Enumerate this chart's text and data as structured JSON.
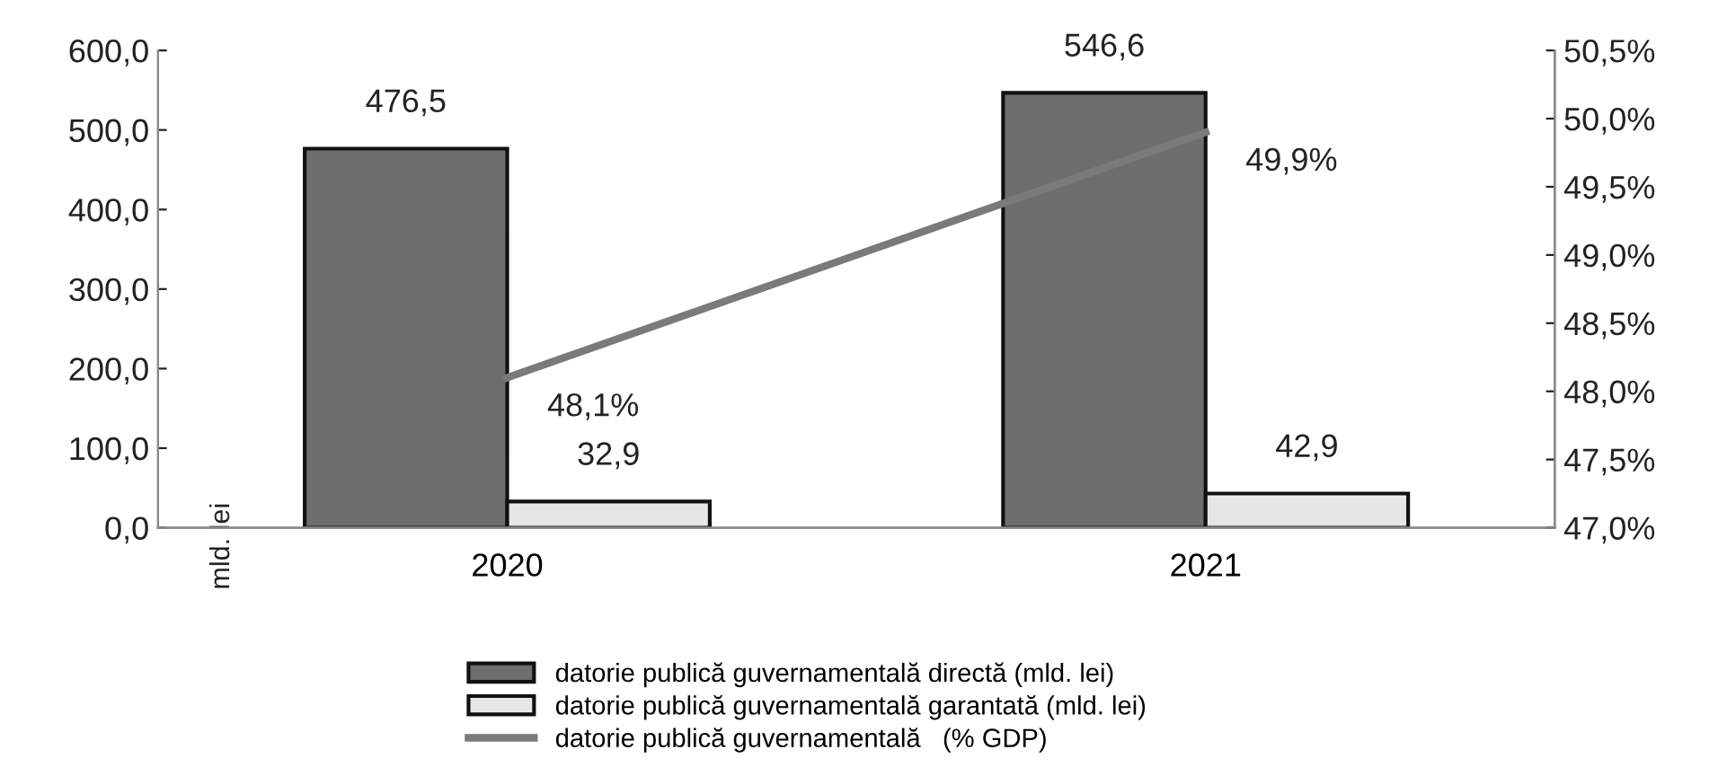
{
  "chart_data": {
    "type": "bar",
    "categories": [
      "2020",
      "2021"
    ],
    "ylabel": "mld. lei",
    "series": [
      {
        "name": "datorie publică guvernamentală directă (mld. lei)",
        "color": "#6e6e6e",
        "values": [
          476.5,
          546.6
        ],
        "value_labels": [
          "476,5",
          "546,6"
        ]
      },
      {
        "name": "datorie publică guvernamentală garantată (mld. lei)",
        "color": "#e6e6e6",
        "values": [
          32.9,
          42.9
        ],
        "value_labels": [
          "32,9",
          "42,9"
        ]
      },
      {
        "name": "datorie publică guvernamentală   (% GDP)",
        "type": "line",
        "axis": "y2",
        "color": "#7a7a7a",
        "values": [
          48.1,
          49.9
        ],
        "value_labels": [
          "48,1%",
          "49,9%"
        ]
      }
    ],
    "ylim": [
      0,
      600
    ],
    "yticks": [
      {
        "value": 0,
        "label": "0,0"
      },
      {
        "value": 100,
        "label": "100,0"
      },
      {
        "value": 200,
        "label": "200,0"
      },
      {
        "value": 300,
        "label": "300,0"
      },
      {
        "value": 400,
        "label": "400,0"
      },
      {
        "value": 500,
        "label": "500,0"
      },
      {
        "value": 600,
        "label": "600,0"
      }
    ],
    "y2lim": [
      47.0,
      50.5
    ],
    "y2ticks": [
      {
        "value": 47.0,
        "label": "47,0%"
      },
      {
        "value": 47.5,
        "label": "47,5%"
      },
      {
        "value": 48.0,
        "label": "48,0%"
      },
      {
        "value": 48.5,
        "label": "48,5%"
      },
      {
        "value": 49.0,
        "label": "49,0%"
      },
      {
        "value": 49.5,
        "label": "49,5%"
      },
      {
        "value": 50.0,
        "label": "50,0%"
      },
      {
        "value": 50.5,
        "label": "50,5%"
      }
    ],
    "grid": false,
    "legend": "bottom",
    "marker": "none",
    "line_style": "solid"
  }
}
